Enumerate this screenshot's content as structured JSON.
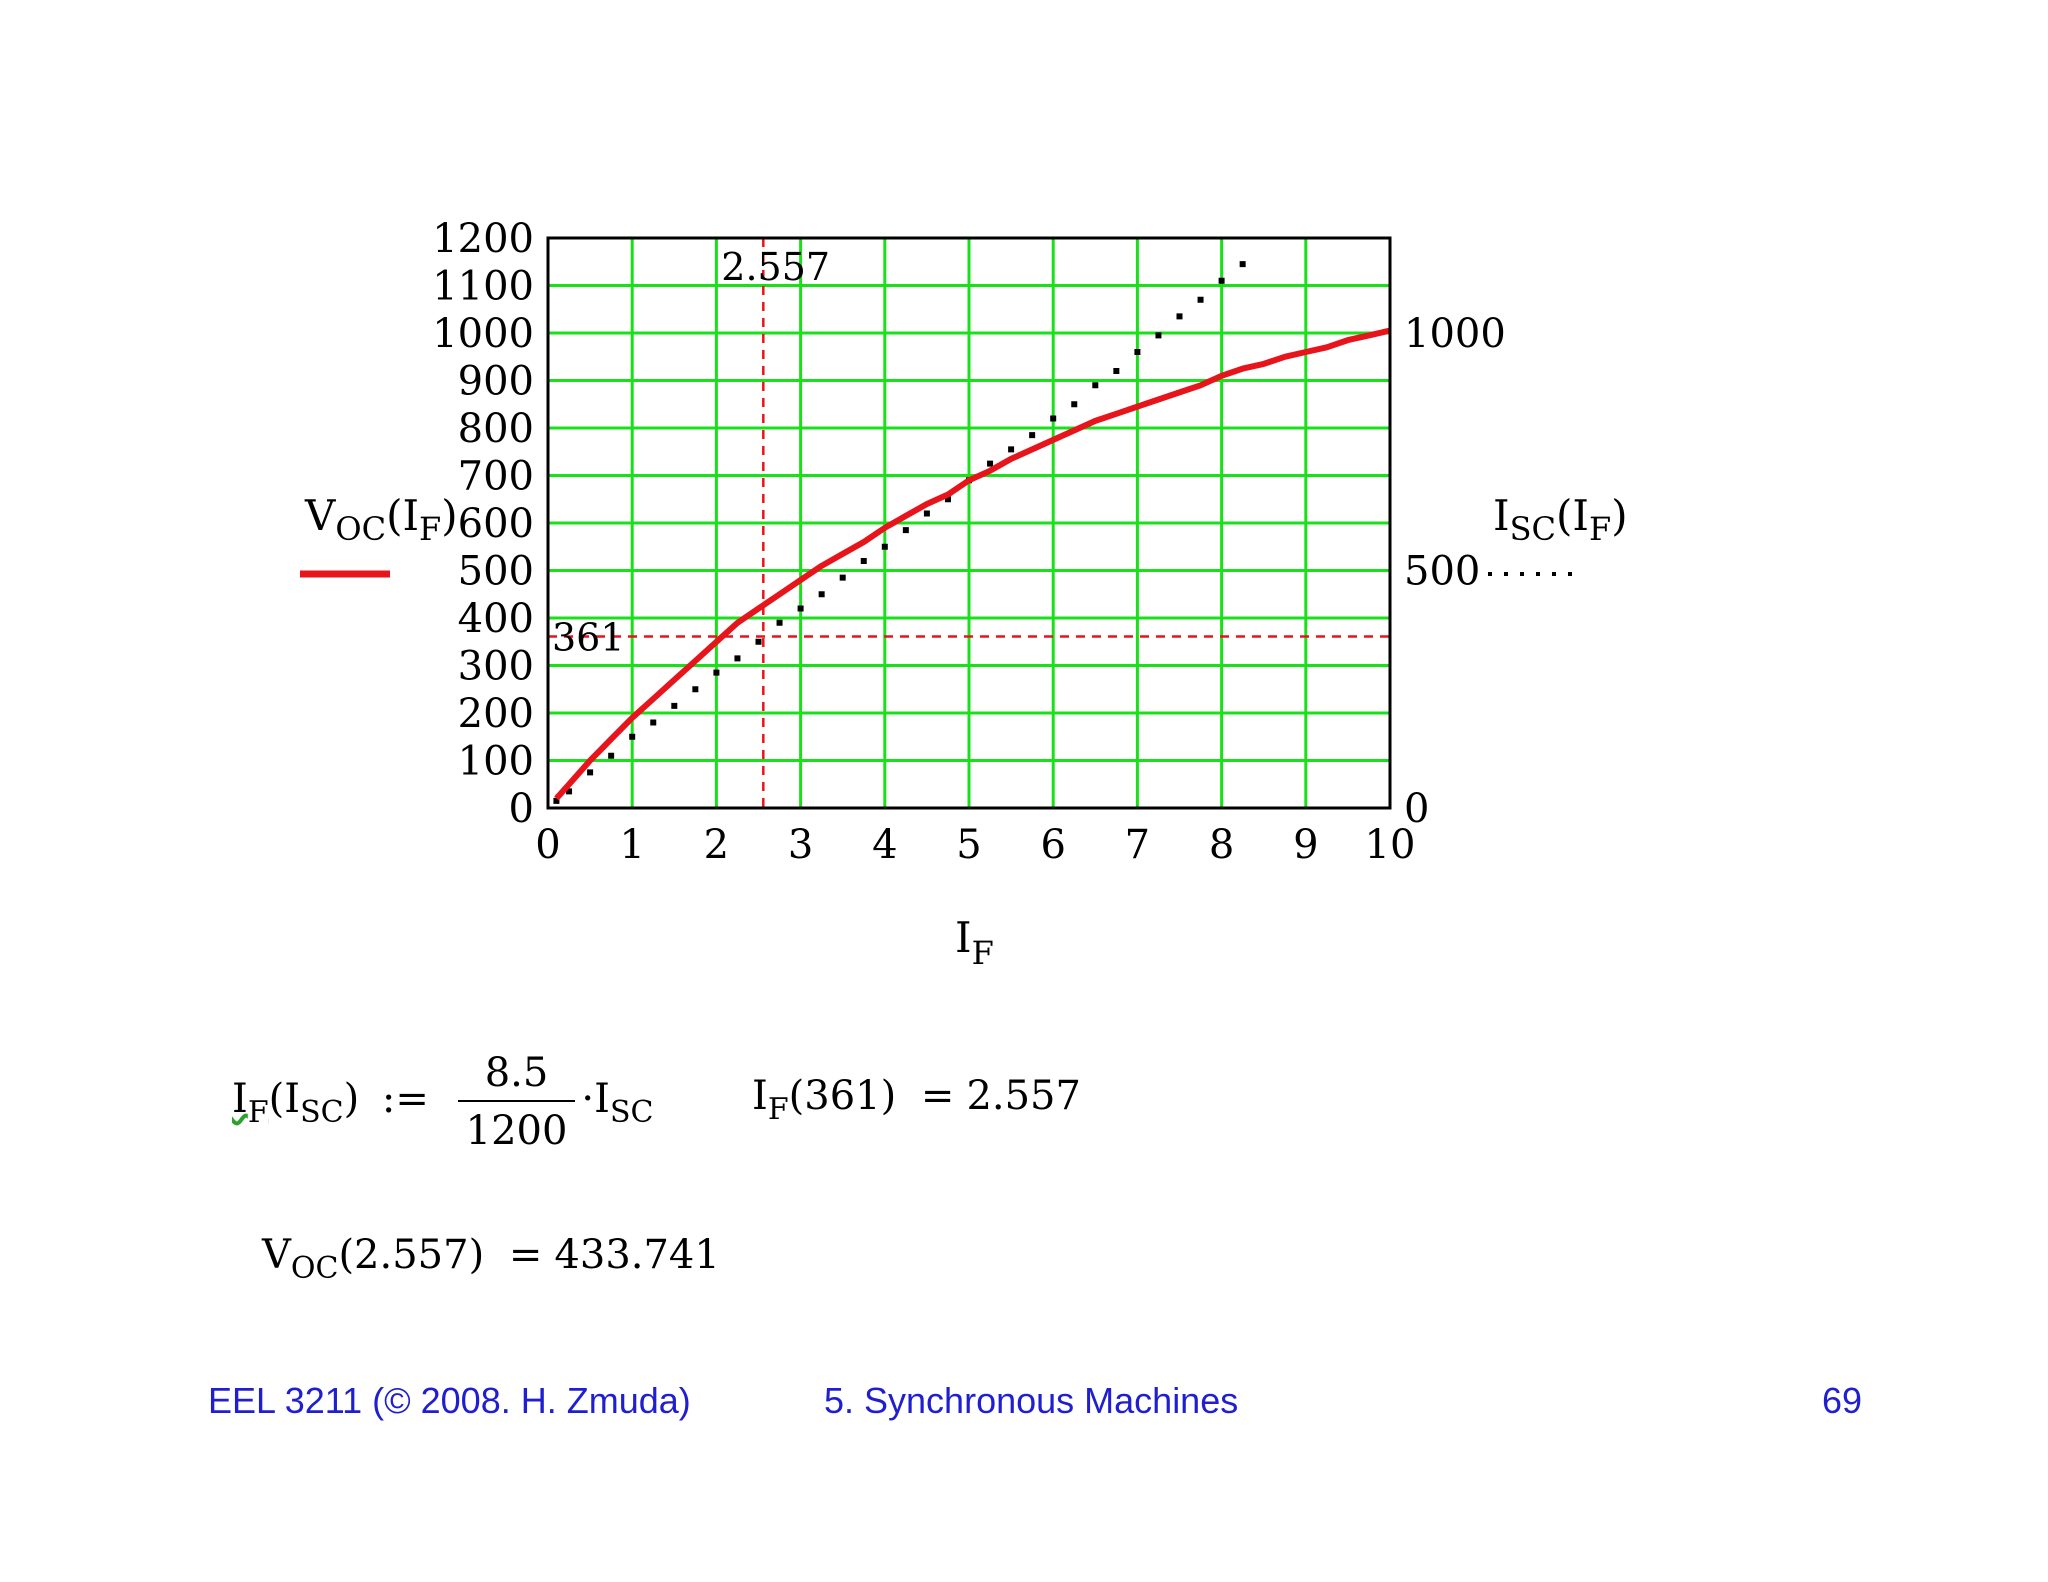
{
  "chart_data": {
    "type": "line",
    "xlabel": "I",
    "xlabel_sub": "F",
    "left_axis": {
      "label_main": "V",
      "label_sub": "OC",
      "label_arg": "I",
      "label_arg_sub": "F",
      "ylim": [
        0,
        1200
      ],
      "ticks": [
        "0",
        "100",
        "200",
        "300",
        "400",
        "500",
        "600",
        "700",
        "800",
        "900",
        "1000",
        "1100",
        "1200"
      ]
    },
    "right_axis": {
      "label_main": "I",
      "label_sub": "SC",
      "label_arg": "I",
      "label_arg_sub": "F",
      "ylim": [
        0,
        1200
      ],
      "ticks": [
        {
          "value": 0,
          "label": "0"
        },
        {
          "value": 500,
          "label": "500"
        },
        {
          "value": 1000,
          "label": "1000"
        }
      ]
    },
    "xlim": [
      0,
      10
    ],
    "x_ticks": [
      "0",
      "1",
      "2",
      "3",
      "4",
      "5",
      "6",
      "7",
      "8",
      "9",
      "10"
    ],
    "grid": true,
    "series": [
      {
        "axis": "left",
        "style": "solid",
        "color": "#e8141c",
        "x": [
          0.1,
          0.3,
          0.5,
          0.75,
          1,
          1.25,
          1.5,
          1.75,
          2,
          2.25,
          2.5,
          2.75,
          3,
          3.25,
          3.5,
          3.75,
          4,
          4.25,
          4.5,
          4.75,
          5,
          5.25,
          5.5,
          5.75,
          6,
          6.25,
          6.5,
          6.75,
          7,
          7.25,
          7.5,
          7.75,
          8,
          8.25,
          8.5,
          8.75,
          9,
          9.25,
          9.5,
          9.75,
          10
        ],
        "y": [
          20,
          60,
          100,
          145,
          190,
          230,
          270,
          310,
          350,
          390,
          420,
          450,
          480,
          510,
          535,
          560,
          590,
          615,
          640,
          660,
          690,
          710,
          735,
          755,
          775,
          795,
          815,
          830,
          845,
          860,
          875,
          890,
          910,
          925,
          935,
          950,
          960,
          970,
          985,
          995,
          1005
        ]
      },
      {
        "axis": "right",
        "style": "dotted",
        "color": "#000000",
        "x": [
          0.1,
          0.25,
          0.5,
          0.75,
          1,
          1.25,
          1.5,
          1.75,
          2,
          2.25,
          2.5,
          2.75,
          3,
          3.25,
          3.5,
          3.75,
          4,
          4.25,
          4.5,
          4.75,
          5,
          5.25,
          5.5,
          5.75,
          6,
          6.25,
          6.5,
          6.75,
          7,
          7.25,
          7.5,
          7.75,
          8,
          8.25
        ],
        "y": [
          15,
          35,
          75,
          110,
          150,
          180,
          215,
          250,
          285,
          315,
          350,
          390,
          420,
          450,
          485,
          520,
          550,
          585,
          620,
          650,
          690,
          725,
          755,
          785,
          820,
          850,
          890,
          920,
          960,
          995,
          1035,
          1070,
          1110,
          1145
        ]
      }
    ],
    "annotations": [
      {
        "type": "vline",
        "x": 2.557,
        "label": "2.557"
      },
      {
        "type": "hline",
        "y": 361,
        "label": "361"
      }
    ]
  },
  "formulas": {
    "f1_lhs_main": "I",
    "f1_lhs_sub": "F",
    "f1_arg_main": "I",
    "f1_arg_sub": "SC",
    "f1_assign": ":=",
    "f1_num": "8.5",
    "f1_den": "1200",
    "f1_dot": "·",
    "f1_rhs_main": "I",
    "f1_rhs_sub": "SC",
    "f2_main": "I",
    "f2_sub": "F",
    "f2_arg": "(361)",
    "f2_eq": "=",
    "f2_val": "2.557",
    "f3_main": "V",
    "f3_sub": "OC",
    "f3_arg": "(2.557)",
    "f3_eq": "=",
    "f3_val": "433.741"
  },
  "footer": {
    "course": "EEL 3211 (© 2008. H. Zmuda)",
    "topic": "5. Synchronous Machines",
    "page": "69"
  },
  "colors": {
    "grid": "#19e119",
    "voc_curve": "#e8141c",
    "isc_curve": "#000000",
    "marker_lines": "#e8141c",
    "footer_text": "#1f1fd1"
  }
}
